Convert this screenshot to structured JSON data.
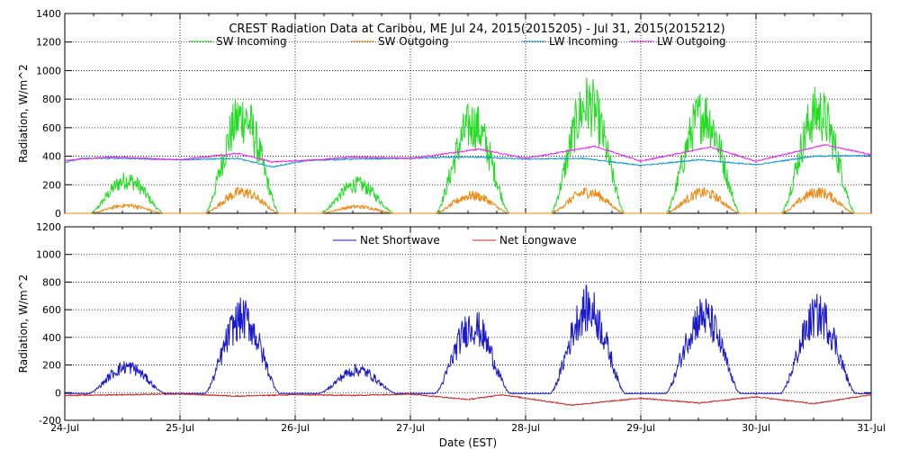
{
  "chart_data": [
    {
      "type": "line",
      "title": "CREST Radiation Data at Caribou, ME   Jul 24, 2015(2015205) - Jul 31, 2015(2015212)",
      "xlabel": "",
      "ylabel": "Radiation, W/m^2",
      "ylim": [
        0,
        1400
      ],
      "yticks": [
        0,
        200,
        400,
        600,
        800,
        1000,
        1200,
        1400
      ],
      "xlim": [
        0,
        7
      ],
      "grid": true,
      "legend": "top",
      "series": [
        {
          "name": "SW Incoming",
          "color": "#22dd22",
          "daily_peaks": [
            300,
            870,
            260,
            800,
            980,
            890,
            910
          ]
        },
        {
          "name": "SW Outgoing",
          "color": "#ee8811",
          "daily_peaks": [
            70,
            190,
            60,
            160,
            190,
            185,
            190
          ]
        },
        {
          "name": "LW Incoming",
          "color": "#1199cc",
          "levels": [
            [
              0,
              355
            ],
            [
              0.15,
              385
            ],
            [
              0.5,
              385
            ],
            [
              1,
              375
            ],
            [
              1.5,
              385
            ],
            [
              1.8,
              325
            ],
            [
              2.1,
              370
            ],
            [
              2.5,
              380
            ],
            [
              3,
              385
            ],
            [
              3.5,
              395
            ],
            [
              4,
              380
            ],
            [
              4.5,
              385
            ],
            [
              5,
              335
            ],
            [
              5.5,
              375
            ],
            [
              6,
              340
            ],
            [
              6.5,
              400
            ],
            [
              7,
              405
            ]
          ]
        },
        {
          "name": "LW Outgoing",
          "color": "#ee22ee",
          "levels": [
            [
              0,
              370
            ],
            [
              0.4,
              395
            ],
            [
              1,
              375
            ],
            [
              1.5,
              420
            ],
            [
              1.8,
              360
            ],
            [
              2.2,
              375
            ],
            [
              2.5,
              395
            ],
            [
              3,
              385
            ],
            [
              3.6,
              450
            ],
            [
              4,
              385
            ],
            [
              4.6,
              470
            ],
            [
              5,
              365
            ],
            [
              5.6,
              465
            ],
            [
              6,
              365
            ],
            [
              6.6,
              480
            ],
            [
              7,
              410
            ]
          ]
        }
      ]
    },
    {
      "type": "line",
      "title": "",
      "xlabel": "Date (EST)",
      "ylabel": "Radiation, W/m^2",
      "ylim": [
        -200,
        1200
      ],
      "yticks": [
        -200,
        0,
        200,
        400,
        600,
        800,
        1000,
        1200
      ],
      "xlim": [
        0,
        7
      ],
      "grid": true,
      "legend": "top",
      "categories": [
        "24-Jul",
        "25-Jul",
        "26-Jul",
        "27-Jul",
        "28-Jul",
        "29-Jul",
        "30-Jul",
        "31-Jul"
      ],
      "series": [
        {
          "name": "Net Shortwave",
          "color": "#1a1acc",
          "daily_peaks": [
            240,
            690,
            210,
            620,
            780,
            710,
            720
          ]
        },
        {
          "name": "Net Longwave",
          "color": "#cc2222",
          "levels": [
            [
              0,
              -20
            ],
            [
              1,
              -10
            ],
            [
              1.5,
              -25
            ],
            [
              2,
              -15
            ],
            [
              2.5,
              -20
            ],
            [
              3,
              -10
            ],
            [
              3.5,
              -50
            ],
            [
              3.8,
              -15
            ],
            [
              4.4,
              -90
            ],
            [
              5,
              -40
            ],
            [
              5.5,
              -75
            ],
            [
              6,
              -30
            ],
            [
              6.5,
              -80
            ],
            [
              7,
              -15
            ]
          ]
        }
      ]
    }
  ]
}
